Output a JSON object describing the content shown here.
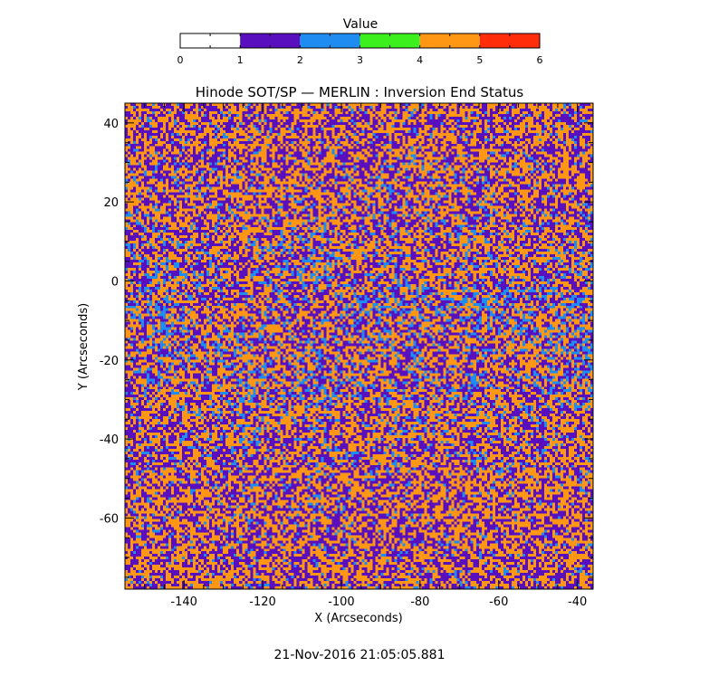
{
  "colorbar": {
    "title": "Value",
    "ticks": [
      "0",
      "1",
      "2",
      "3",
      "4",
      "5",
      "6"
    ],
    "segments": [
      {
        "from": 0,
        "to": 1,
        "color": "#ffffff"
      },
      {
        "from": 1,
        "to": 2,
        "color": "#5a0fbf"
      },
      {
        "from": 2,
        "to": 3,
        "color": "#1e8cf0"
      },
      {
        "from": 3,
        "to": 4,
        "color": "#3cf01e"
      },
      {
        "from": 4,
        "to": 5,
        "color": "#ff9614"
      },
      {
        "from": 5,
        "to": 6,
        "color": "#ff2d0a"
      }
    ]
  },
  "chart_data": {
    "type": "heatmap",
    "title": "Hinode SOT/SP — MERLIN : Inversion End Status",
    "xlabel": "X (Arcseconds)",
    "ylabel": "Y (Arcseconds)",
    "xlim": [
      -155,
      -36
    ],
    "ylim": [
      -78,
      45
    ],
    "xticks": [
      "-140",
      "-120",
      "-100",
      "-80",
      "-60",
      "-40"
    ],
    "yticks": [
      "40",
      "20",
      "0",
      "-20",
      "-40",
      "-60"
    ],
    "value_range": [
      0,
      6
    ],
    "observed_values": [
      1,
      2,
      4
    ],
    "dominant_colors": {
      "1": "#5a0fbf",
      "2": "#1e8cf0",
      "4": "#ff9614"
    }
  },
  "footer": {
    "timestamp": "21-Nov-2016 21:05:05.881"
  }
}
